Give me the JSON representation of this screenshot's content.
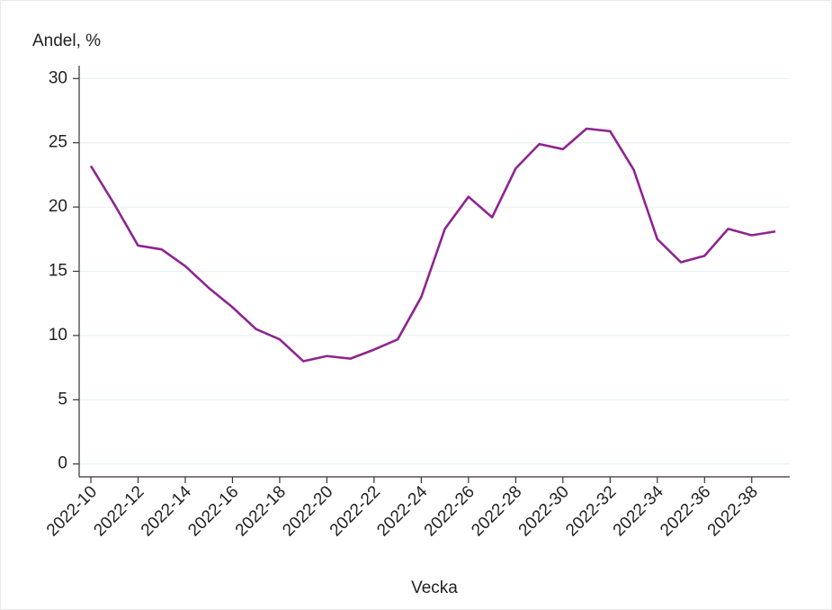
{
  "chart_data": {
    "type": "line",
    "y_label": "Andel, %",
    "x_label": "Vecka",
    "categories": [
      "2022-10",
      null,
      "2022-12",
      null,
      "2022-14",
      null,
      "2022-16",
      null,
      "2022-18",
      null,
      "2022-20",
      null,
      "2022-22",
      null,
      "2022-24",
      null,
      "2022-26",
      null,
      "2022-28",
      null,
      "2022-30",
      null,
      "2022-32",
      null,
      "2022-34",
      null,
      "2022-36",
      null,
      "2022-38",
      null
    ],
    "series": [
      {
        "color": "#8e2590",
        "values": [
          23.2,
          20.2,
          17.0,
          16.7,
          15.4,
          13.7,
          12.2,
          10.5,
          9.7,
          8.0,
          8.4,
          8.2,
          8.9,
          9.7,
          13.0,
          18.3,
          20.8,
          19.2,
          23.0,
          24.9,
          24.5,
          26.1,
          25.9,
          22.9,
          17.5,
          15.7,
          16.2,
          18.3,
          17.8,
          18.1
        ]
      }
    ],
    "ylim": [
      -1,
      31
    ],
    "yticks": [
      0,
      5,
      10,
      15,
      20,
      25,
      30
    ],
    "grid": true
  }
}
